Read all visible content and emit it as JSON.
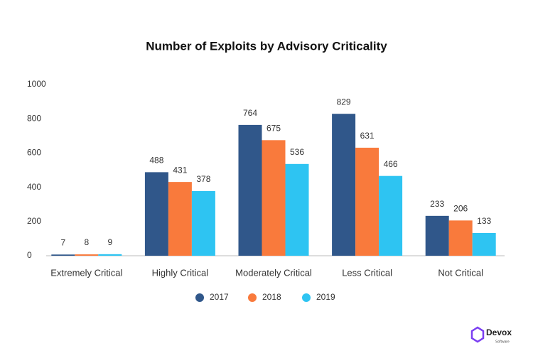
{
  "chart_data": {
    "type": "bar",
    "title": "Number of Exploits by Advisory Criticality",
    "categories": [
      "Extremely Critical",
      "Highly Critical",
      "Moderately Critical",
      "Less Critical",
      "Not Critical"
    ],
    "series": [
      {
        "name": "2017",
        "color": "#30578a",
        "values": [
          7,
          488,
          764,
          829,
          233
        ]
      },
      {
        "name": "2018",
        "color": "#f97a3c",
        "values": [
          8,
          431,
          675,
          631,
          206
        ]
      },
      {
        "name": "2019",
        "color": "#2ec4f2",
        "values": [
          9,
          378,
          536,
          466,
          133
        ]
      }
    ],
    "ylim": [
      0,
      1000
    ],
    "yticks": [
      0,
      200,
      400,
      600,
      800,
      1000
    ],
    "grid": false,
    "legend": "bottom"
  },
  "logo": {
    "name": "Devox",
    "tagline": "Software"
  }
}
